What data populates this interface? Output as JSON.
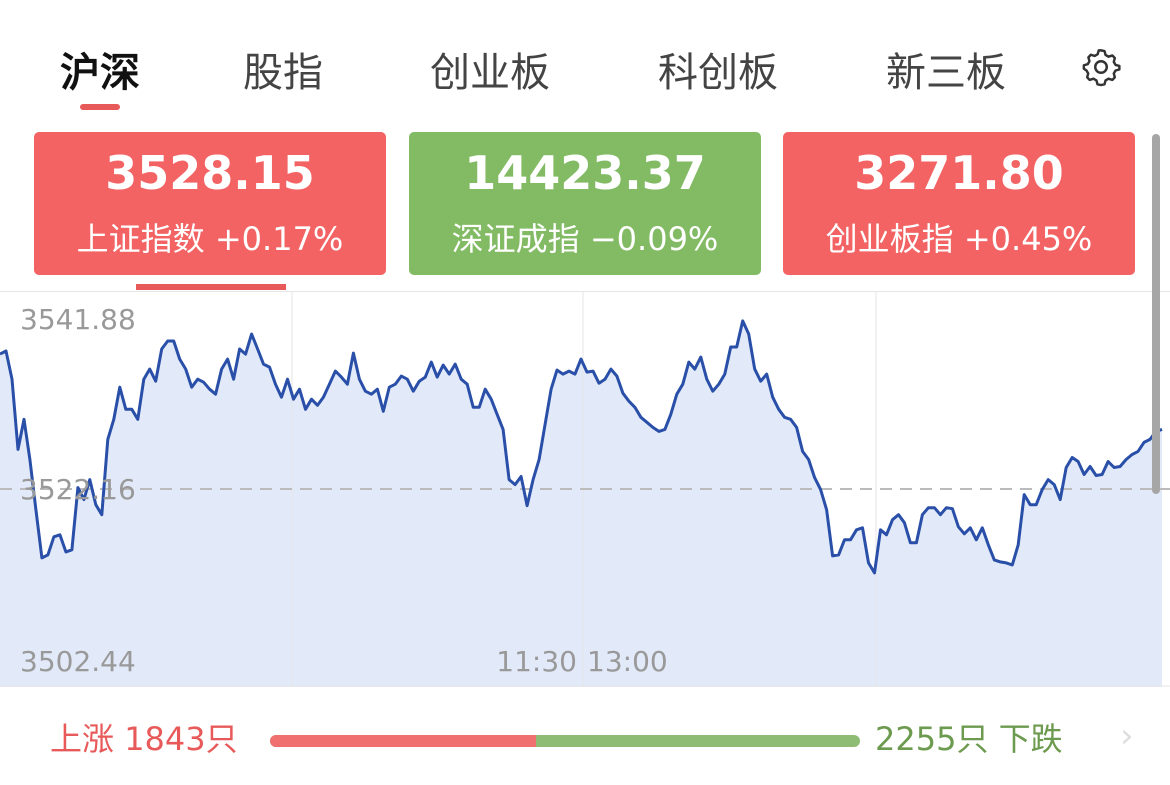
{
  "tabs": [
    {
      "label": "沪深",
      "active": true
    },
    {
      "label": "股指",
      "active": false
    },
    {
      "label": "创业板",
      "active": false
    },
    {
      "label": "科创板",
      "active": false
    },
    {
      "label": "新三板",
      "active": false
    }
  ],
  "settings_icon": "gear-icon",
  "index_cards": [
    {
      "value": "3528.15",
      "name": "上证指数",
      "change": "+0.17%",
      "color": "#f36363",
      "selected": true
    },
    {
      "value": "14423.37",
      "name": "深证成指",
      "change": "−0.09%",
      "color": "#82bb64",
      "selected": false
    },
    {
      "value": "3271.80",
      "name": "创业板指",
      "change": "+0.45%",
      "color": "#f36363",
      "selected": false
    }
  ],
  "chart_data": {
    "type": "area",
    "y_labels": {
      "top": "3541.88",
      "middle": "3522.16",
      "bottom": "3502.44"
    },
    "x_labels": [
      "11:30",
      "13:00"
    ],
    "ylim": [
      3502.44,
      3541.88
    ],
    "x_range": [
      "09:30",
      "15:00"
    ],
    "reference_value": 3522.16,
    "line_color": "#2a4fa8",
    "fill_color": "#e2eafa",
    "values": [
      3535.6,
      3535.9,
      3533.1,
      3526.1,
      3529.1,
      3525.1,
      3520.1,
      3515.3,
      3515.6,
      3517.4,
      3517.6,
      3515.9,
      3516.1,
      3522.3,
      3521.1,
      3523.1,
      3520.6,
      3519.6,
      3527.1,
      3529.1,
      3532.3,
      3530.1,
      3530.1,
      3529.1,
      3533.1,
      3534.1,
      3532.9,
      3536.1,
      3536.9,
      3536.9,
      3535.1,
      3534.1,
      3532.3,
      3533.1,
      3532.8,
      3532.1,
      3531.6,
      3534.1,
      3535.1,
      3533.1,
      3536.1,
      3535.6,
      3537.6,
      3536.1,
      3534.6,
      3534.3,
      3532.6,
      3531.3,
      3533.1,
      3531.1,
      3532.1,
      3530.1,
      3531.1,
      3530.5,
      3531.3,
      3532.6,
      3533.9,
      3533.3,
      3532.6,
      3535.7,
      3533.1,
      3531.9,
      3531.6,
      3532.1,
      3529.9,
      3532.3,
      3532.6,
      3533.4,
      3533.1,
      3531.9,
      3532.9,
      3533.3,
      3534.8,
      3533.3,
      3534.5,
      3533.6,
      3534.6,
      3533.1,
      3532.6,
      3530.3,
      3530.3,
      3532.1,
      3531.1,
      3529.6,
      3528.1,
      3523.1,
      3522.6,
      3523.4,
      3520.5,
      3523.1,
      3525.1,
      3528.6,
      3532.1,
      3534.0,
      3533.6,
      3533.9,
      3533.6,
      3535.1,
      3533.8,
      3533.9,
      3532.7,
      3533.1,
      3534.1,
      3533.4,
      3531.7,
      3530.9,
      3530.3,
      3529.3,
      3528.8,
      3528.3,
      3527.9,
      3528.1,
      3529.6,
      3531.6,
      3532.6,
      3534.8,
      3534.1,
      3535.3,
      3533.1,
      3531.9,
      3532.6,
      3533.6,
      3536.3,
      3536.3,
      3538.9,
      3537.6,
      3534.1,
      3532.9,
      3533.6,
      3531.3,
      3530.1,
      3529.3,
      3529.1,
      3528.3,
      3525.9,
      3525.1,
      3523.3,
      3522.1,
      3520.1,
      3515.5,
      3515.6,
      3517.1,
      3517.1,
      3518.1,
      3518.3,
      3514.8,
      3513.8,
      3518.1,
      3517.6,
      3519.1,
      3519.6,
      3518.8,
      3516.8,
      3516.8,
      3519.6,
      3520.3,
      3520.3,
      3519.6,
      3520.3,
      3520.2,
      3518.4,
      3517.7,
      3518.3,
      3517.1,
      3518.3,
      3516.6,
      3515.1,
      3514.9,
      3514.8,
      3514.6,
      3516.6,
      3521.6,
      3520.6,
      3520.6,
      3522.1,
      3523.1,
      3522.6,
      3521.1,
      3524.3,
      3525.3,
      3524.9,
      3523.6,
      3524.4,
      3523.5,
      3523.6,
      3524.9,
      3524.3,
      3524.4,
      3525.1,
      3525.6,
      3525.9,
      3526.8,
      3527.1,
      3527.9,
      3528.1
    ]
  },
  "breadth": {
    "up_label": "上涨",
    "up_count": "1843只",
    "down_count": "2255只",
    "down_label": "下跌",
    "up_fraction": 0.45,
    "up_color": "#f07070",
    "down_color": "#8fbc74"
  }
}
